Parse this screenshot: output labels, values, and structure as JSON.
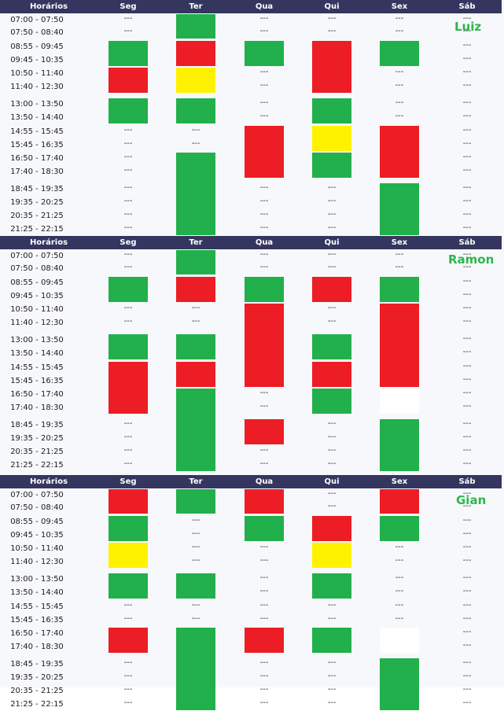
{
  "header_labels": [
    "Horários",
    "Seg",
    "Ter",
    "Qua",
    "Qui",
    "Sex",
    "Sáb"
  ],
  "time_slots": [
    "07:00 - 07:50",
    "07:50 - 08:40",
    "08:55 - 09:45",
    "09:45 - 10:35",
    "10:50 - 11:40",
    "11:40 - 12:30",
    "13:00 - 13:50",
    "13:50 - 14:40",
    "14:55 - 15:45",
    "15:45 - 16:35",
    "16:50 - 17:40",
    "17:40 - 18:30",
    "18:45 - 19:35",
    "19:35 - 20:25",
    "20:35 - 21:25",
    "21:25 - 22:15"
  ],
  "empty_marker": "---",
  "colors": {
    "header_bg": "#34365f",
    "free": "#21b04b",
    "busy": "#ec1d25",
    "partial": "#fff200",
    "name": "#2fb54b"
  },
  "schedules": [
    {
      "name": "Luiz",
      "blocks": [
        {
          "day": "Seg",
          "color": "green",
          "from": 2,
          "to": 3
        },
        {
          "day": "Seg",
          "color": "red",
          "from": 4,
          "to": 5
        },
        {
          "day": "Seg",
          "color": "green",
          "from": 6,
          "to": 7
        },
        {
          "day": "Ter",
          "color": "green",
          "from": 0,
          "to": 1
        },
        {
          "day": "Ter",
          "color": "red",
          "from": 2,
          "to": 3
        },
        {
          "day": "Ter",
          "color": "yellow",
          "from": 4,
          "to": 5
        },
        {
          "day": "Ter",
          "color": "green",
          "from": 6,
          "to": 7
        },
        {
          "day": "Ter",
          "color": "green",
          "from": 10,
          "to": 15
        },
        {
          "day": "Qua",
          "color": "green",
          "from": 2,
          "to": 3
        },
        {
          "day": "Qua",
          "color": "red",
          "from": 8,
          "to": 11
        },
        {
          "day": "Qui",
          "color": "red",
          "from": 2,
          "to": 5
        },
        {
          "day": "Qui",
          "color": "green",
          "from": 6,
          "to": 7
        },
        {
          "day": "Qui",
          "color": "yellow",
          "from": 8,
          "to": 9
        },
        {
          "day": "Qui",
          "color": "green",
          "from": 10,
          "to": 11
        },
        {
          "day": "Sex",
          "color": "green",
          "from": 2,
          "to": 3
        },
        {
          "day": "Sex",
          "color": "red",
          "from": 8,
          "to": 11
        },
        {
          "day": "Sex",
          "color": "green",
          "from": 12,
          "to": 15
        }
      ]
    },
    {
      "name": "Ramon",
      "blocks": [
        {
          "day": "Seg",
          "color": "green",
          "from": 2,
          "to": 3
        },
        {
          "day": "Seg",
          "color": "green",
          "from": 6,
          "to": 7
        },
        {
          "day": "Seg",
          "color": "red",
          "from": 8,
          "to": 11
        },
        {
          "day": "Ter",
          "color": "green",
          "from": 0,
          "to": 1
        },
        {
          "day": "Ter",
          "color": "red",
          "from": 2,
          "to": 3
        },
        {
          "day": "Ter",
          "color": "green",
          "from": 6,
          "to": 7
        },
        {
          "day": "Ter",
          "color": "red",
          "from": 8,
          "to": 9
        },
        {
          "day": "Ter",
          "color": "green",
          "from": 10,
          "to": 15
        },
        {
          "day": "Qua",
          "color": "green",
          "from": 2,
          "to": 3
        },
        {
          "day": "Qua",
          "color": "red",
          "from": 4,
          "to": 9
        },
        {
          "day": "Qua",
          "color": "red",
          "from": 12,
          "to": 13
        },
        {
          "day": "Qui",
          "color": "red",
          "from": 2,
          "to": 3
        },
        {
          "day": "Qui",
          "color": "green",
          "from": 6,
          "to": 7
        },
        {
          "day": "Qui",
          "color": "red",
          "from": 8,
          "to": 9
        },
        {
          "day": "Qui",
          "color": "green",
          "from": 10,
          "to": 11
        },
        {
          "day": "Sex",
          "color": "green",
          "from": 2,
          "to": 3
        },
        {
          "day": "Sex",
          "color": "red",
          "from": 4,
          "to": 9
        },
        {
          "day": "Sex",
          "color": "white",
          "from": 10,
          "to": 11
        },
        {
          "day": "Sex",
          "color": "green",
          "from": 12,
          "to": 15
        }
      ]
    },
    {
      "name": "Gian",
      "blocks": [
        {
          "day": "Seg",
          "color": "red",
          "from": 0,
          "to": 1
        },
        {
          "day": "Seg",
          "color": "green",
          "from": 2,
          "to": 3
        },
        {
          "day": "Seg",
          "color": "yellow",
          "from": 4,
          "to": 5
        },
        {
          "day": "Seg",
          "color": "green",
          "from": 6,
          "to": 7
        },
        {
          "day": "Seg",
          "color": "red",
          "from": 10,
          "to": 11
        },
        {
          "day": "Ter",
          "color": "green",
          "from": 0,
          "to": 1
        },
        {
          "day": "Ter",
          "color": "green",
          "from": 6,
          "to": 7
        },
        {
          "day": "Ter",
          "color": "green",
          "from": 10,
          "to": 15
        },
        {
          "day": "Qua",
          "color": "red",
          "from": 0,
          "to": 1
        },
        {
          "day": "Qua",
          "color": "green",
          "from": 2,
          "to": 3
        },
        {
          "day": "Qua",
          "color": "red",
          "from": 10,
          "to": 11
        },
        {
          "day": "Qui",
          "color": "red",
          "from": 2,
          "to": 3
        },
        {
          "day": "Qui",
          "color": "yellow",
          "from": 4,
          "to": 5
        },
        {
          "day": "Qui",
          "color": "green",
          "from": 6,
          "to": 7
        },
        {
          "day": "Qui",
          "color": "green",
          "from": 10,
          "to": 11
        },
        {
          "day": "Sex",
          "color": "red",
          "from": 0,
          "to": 1
        },
        {
          "day": "Sex",
          "color": "green",
          "from": 2,
          "to": 3
        },
        {
          "day": "Sex",
          "color": "white",
          "from": 10,
          "to": 11
        },
        {
          "day": "Sex",
          "color": "green",
          "from": 12,
          "to": 15
        }
      ]
    }
  ]
}
